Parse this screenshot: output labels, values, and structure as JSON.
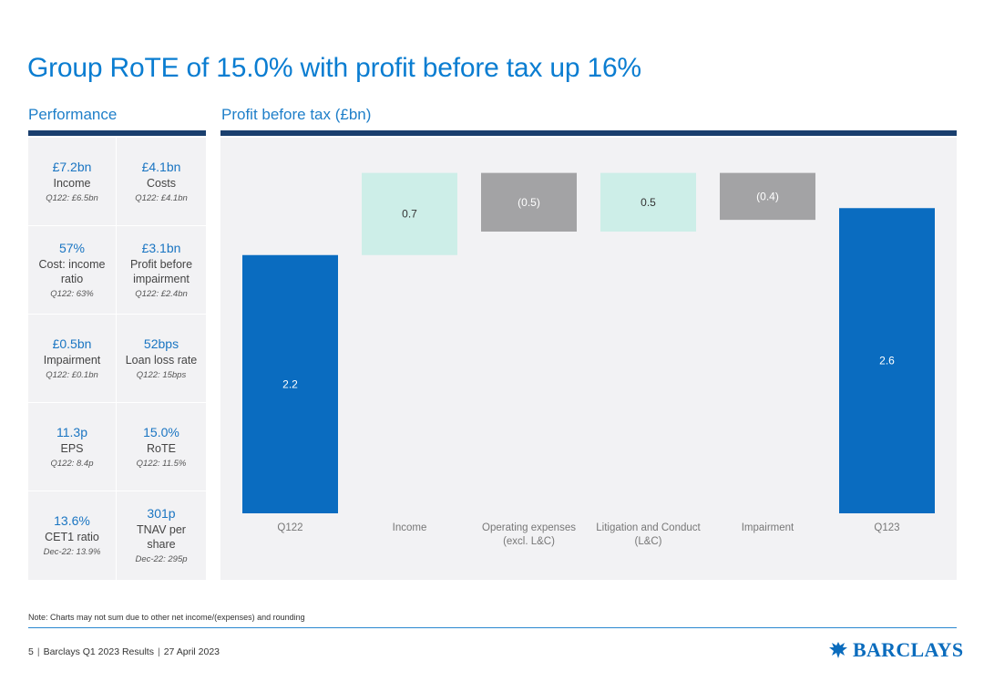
{
  "slide": {
    "title": "Group RoTE of 15.0% with profit before tax up 16%",
    "performance_label": "Performance",
    "chart_label": "Profit before tax (£bn)"
  },
  "performance": [
    {
      "value": "£7.2bn",
      "label": "Income",
      "comparison": "Q122: £6.5bn"
    },
    {
      "value": "£4.1bn",
      "label": "Costs",
      "comparison": "Q122: £4.1bn"
    },
    {
      "value": "57%",
      "label": "Cost: income ratio",
      "comparison": "Q122: 63%"
    },
    {
      "value": "£3.1bn",
      "label": "Profit before impairment",
      "comparison": "Q122: £2.4bn"
    },
    {
      "value": "£0.5bn",
      "label": "Impairment",
      "comparison": "Q122: £0.1bn"
    },
    {
      "value": "52bps",
      "label": "Loan loss rate",
      "comparison": "Q122: 15bps"
    },
    {
      "value": "11.3p",
      "label": "EPS",
      "comparison": "Q122: 8.4p"
    },
    {
      "value": "15.0%",
      "label": "RoTE",
      "comparison": "Q122: 11.5%"
    },
    {
      "value": "13.6%",
      "label": "CET1 ratio",
      "comparison": "Dec-22: 13.9%"
    },
    {
      "value": "301p",
      "label": "TNAV per share",
      "comparison": "Dec-22: 295p"
    }
  ],
  "chart_data": {
    "type": "waterfall",
    "title": "Profit before tax (£bn)",
    "categories": [
      "Q122",
      "Income",
      "Operating expenses (excl. L&C)",
      "Litigation and Conduct (L&C)",
      "Impairment",
      "Q123"
    ],
    "label_lines": [
      [
        "Q122"
      ],
      [
        "Income"
      ],
      [
        "Operating expenses",
        "(excl. L&C)"
      ],
      [
        "Litigation and Conduct",
        "(L&C)"
      ],
      [
        "Impairment"
      ],
      [
        "Q123"
      ]
    ],
    "values": [
      2.2,
      0.7,
      -0.5,
      0.5,
      -0.4,
      2.6
    ],
    "labels": [
      "2.2",
      "0.7",
      "(0.5)",
      "0.5",
      "(0.4)",
      "2.6"
    ],
    "kinds": [
      "total",
      "increase",
      "decrease",
      "increase",
      "decrease",
      "total"
    ],
    "colors": {
      "total": "#0a6cc0",
      "increase": "#cdeee8",
      "decrease": "#a3a3a5",
      "total_label": "#ffffff",
      "increase_label": "#333333",
      "decrease_label": "#ffffff"
    },
    "ylim": [
      0,
      3.2
    ],
    "grid": false
  },
  "footnote": "Note: Charts may not sum due to other net income/(expenses) and rounding",
  "footer": {
    "page": "5",
    "deck": "Barclays Q1 2023 Results",
    "date": "27 April 2023"
  },
  "brand": {
    "logo_text": "BARCLAYS",
    "accent": "#0a7dd1",
    "rule_color": "#1a3f6e"
  }
}
